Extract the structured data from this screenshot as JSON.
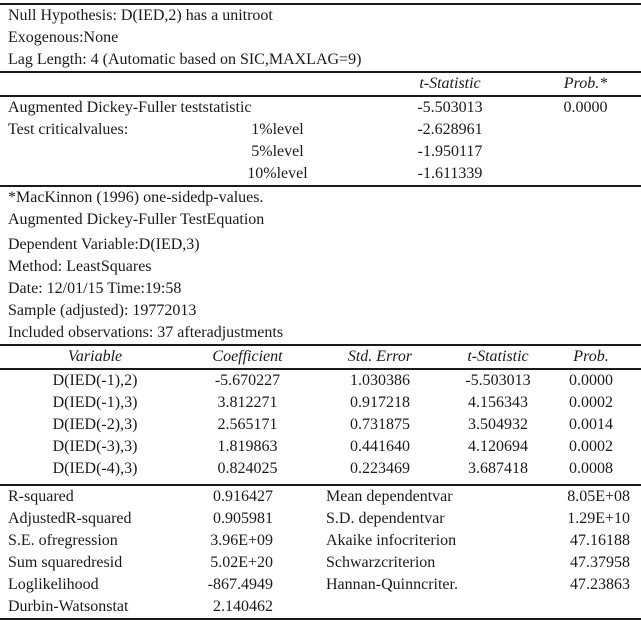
{
  "doc": {
    "header_lines": [
      "Null Hypothesis: D(IED,2) has a unitroot",
      "Exogenous:None",
      "Lag Length: 4 (Automatic based on SIC,MAXLAG=9)"
    ],
    "adf_table": {
      "col_tstat": "t-Statistic",
      "col_prob": "Prob.*",
      "test_row": {
        "label": "Augmented Dickey-Fuller teststatistic",
        "tstat": "-5.503013",
        "prob": "0.0000"
      },
      "critical_label": "Test criticalvalues:",
      "critical_rows": [
        {
          "level": "1%level",
          "value": "-2.628961"
        },
        {
          "level": "5%level",
          "value": "-1.950117"
        },
        {
          "level": "10%level",
          "value": "-1.611339"
        }
      ]
    },
    "notes": [
      "*MacKinnon (1996) one-sidedp-values.",
      "Augmented Dickey-Fuller TestEquation"
    ],
    "equation_info": [
      "Dependent Variable:D(IED,3)",
      "Method: LeastSquares",
      "Date: 12/01/15 Time:19:58",
      "Sample (adjusted): 19772013",
      "Included observations: 37 afteradjustments"
    ],
    "coef_table": {
      "headers": [
        "Variable",
        "Coefficient",
        "Std. Error",
        "t-Statistic",
        "Prob."
      ],
      "rows": [
        [
          "D(IED(-1),2)",
          "-5.670227",
          "1.030386",
          "-5.503013",
          "0.0000"
        ],
        [
          "D(IED(-1),3)",
          "3.812271",
          "0.917218",
          "4.156343",
          "0.0002"
        ],
        [
          "D(IED(-2),3)",
          "2.565171",
          "0.731875",
          "3.504932",
          "0.0014"
        ],
        [
          "D(IED(-3),3)",
          "1.819863",
          "0.441640",
          "4.120694",
          "0.0002"
        ],
        [
          "D(IED(-4),3)",
          "0.824025",
          "0.223469",
          "3.687418",
          "0.0008"
        ]
      ]
    },
    "summary_stats": {
      "rows": [
        {
          "llabel": "R-squared",
          "lvalue": "0.916427",
          "rlabel": "Mean dependentvar",
          "rvalue": "8.05E+08"
        },
        {
          "llabel": "AdjustedR-squared",
          "lvalue": "0.905981",
          "rlabel": "S.D. dependentvar",
          "rvalue": "1.29E+10"
        },
        {
          "llabel": "S.E. ofregression",
          "lvalue": "3.96E+09",
          "rlabel": "Akaike infocriterion",
          "rvalue": "47.16188"
        },
        {
          "llabel": "Sum squaredresid",
          "lvalue": "5.02E+20",
          "rlabel": "Schwarzcriterion",
          "rvalue": "47.37958"
        },
        {
          "llabel": "Loglikelihood",
          "lvalue": "-867.4949",
          "rlabel": "Hannan-Quinncriter.",
          "rvalue": "47.23863"
        },
        {
          "llabel": "Durbin-Watsonstat",
          "lvalue": "2.140462",
          "rlabel": "",
          "rvalue": ""
        }
      ]
    },
    "colors": {
      "text": "#1a1a1a",
      "background": "#ffffff",
      "rule": "#1a1a1a"
    }
  }
}
